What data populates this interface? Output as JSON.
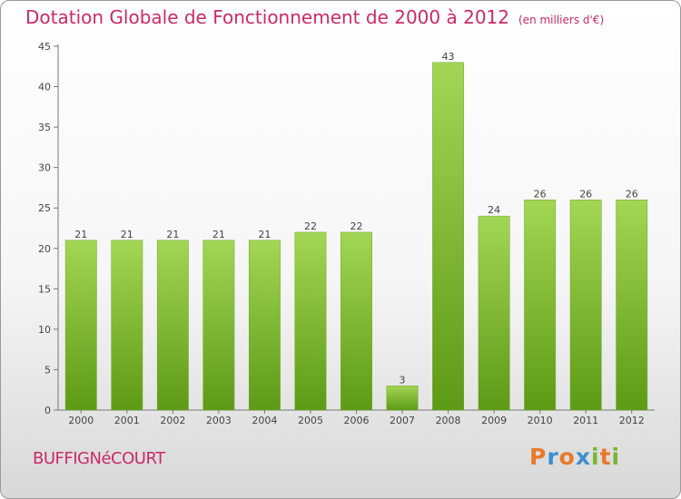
{
  "title": "Dotation Globale de Fonctionnement de 2000 à 2012",
  "unit_note": "(en milliers d'€)",
  "commune": "BUFFIGNéCOURT",
  "logo": {
    "text": "Proxiti",
    "colors": [
      "#e8792a",
      "#3c8fd0",
      "#e8792a",
      "#3c8fd0",
      "#79b531",
      "#e8792a",
      "#79b531"
    ]
  },
  "colors": {
    "title": "#cc2a64",
    "bar_light": "#9fd450",
    "bar_dark": "#5d9a16",
    "axis": "#666666"
  },
  "chart_data": {
    "type": "bar",
    "title": "Dotation Globale de Fonctionnement de 2000 à 2012",
    "categories": [
      "2000",
      "2001",
      "2002",
      "2003",
      "2004",
      "2005",
      "2006",
      "2007",
      "2008",
      "2009",
      "2010",
      "2011",
      "2012"
    ],
    "values": [
      21,
      21,
      21,
      21,
      21,
      22,
      22,
      3,
      43,
      24,
      26,
      26,
      26
    ],
    "xlabel": "",
    "ylabel": "",
    "ylim": [
      0,
      45
    ],
    "yticks": [
      0,
      5,
      10,
      15,
      20,
      25,
      30,
      35,
      40,
      45
    ],
    "grid": false,
    "data_labels": true
  }
}
